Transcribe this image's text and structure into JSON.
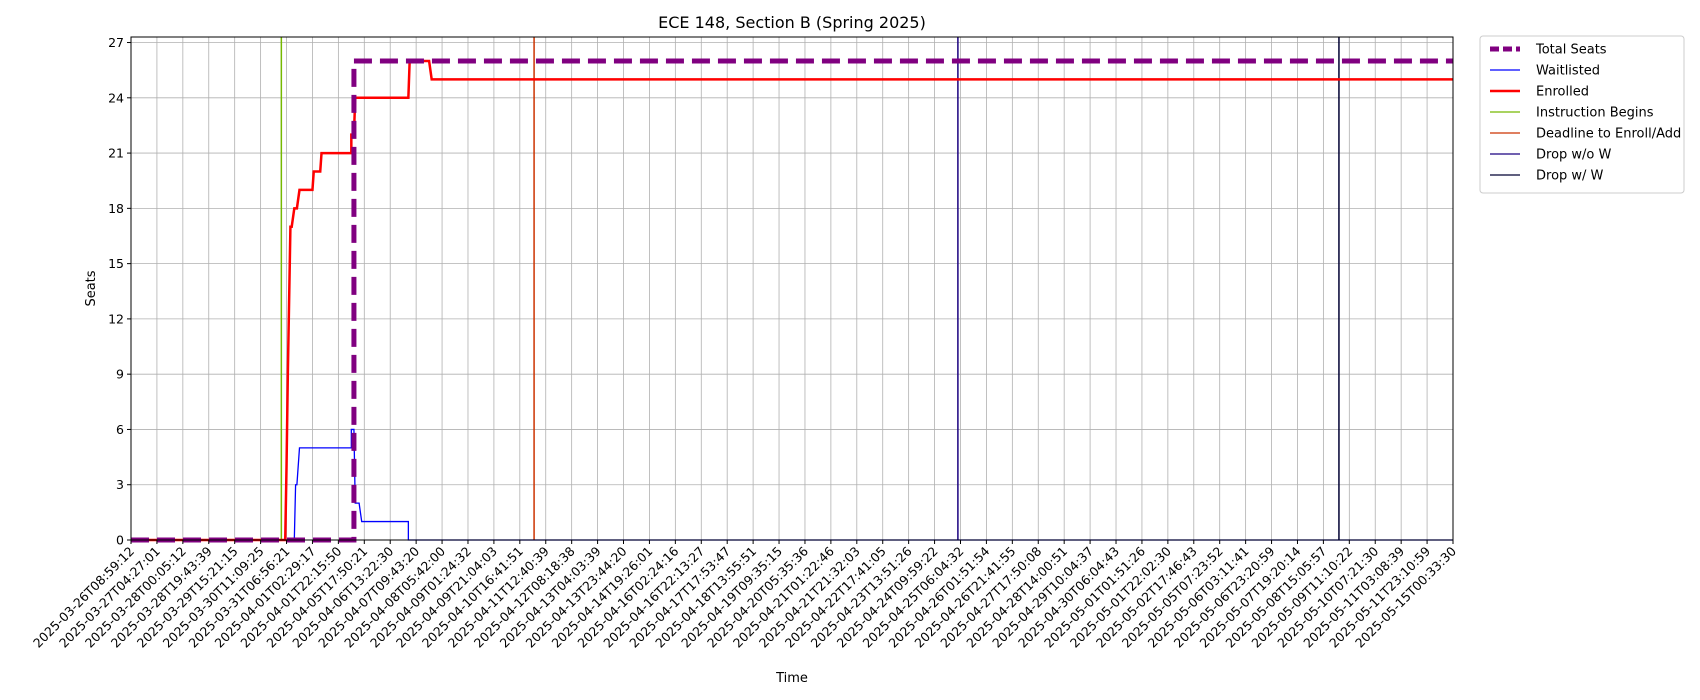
{
  "chart_data": {
    "type": "line",
    "title": "ECE 148, Section B (Spring 2025)",
    "xlabel": "Time",
    "ylabel": "Seats",
    "ylim": [
      0,
      27.3
    ],
    "yticks": [
      0,
      3,
      6,
      9,
      12,
      15,
      18,
      21,
      24,
      27
    ],
    "grid": true,
    "legend_position": "outside top-right",
    "x_tick_labels": [
      "2025-03-26T08:59:12",
      "2025-03-27T04:27:01",
      "2025-03-28T00:05:12",
      "2025-03-28T19:43:39",
      "2025-03-29T15:21:15",
      "2025-03-30T11:09:25",
      "2025-03-31T06:56:21",
      "2025-04-01T02:29:17",
      "2025-04-01T22:15:50",
      "2025-04-05T17:50:21",
      "2025-04-06T13:22:30",
      "2025-04-07T09:43:20",
      "2025-04-08T05:42:00",
      "2025-04-09T01:24:32",
      "2025-04-09T21:04:03",
      "2025-04-10T16:41:51",
      "2025-04-11T12:40:39",
      "2025-04-12T08:18:38",
      "2025-04-13T04:03:39",
      "2025-04-13T23:44:20",
      "2025-04-14T19:26:01",
      "2025-04-16T02:24:16",
      "2025-04-16T22:13:27",
      "2025-04-17T17:53:47",
      "2025-04-18T13:55:51",
      "2025-04-19T09:35:15",
      "2025-04-20T05:35:36",
      "2025-04-21T01:22:46",
      "2025-04-21T21:32:03",
      "2025-04-22T17:41:05",
      "2025-04-23T13:51:26",
      "2025-04-24T09:59:22",
      "2025-04-25T06:04:32",
      "2025-04-26T01:51:54",
      "2025-04-26T21:41:55",
      "2025-04-27T17:50:08",
      "2025-04-28T14:00:51",
      "2025-04-29T10:04:37",
      "2025-04-30T06:04:43",
      "2025-05-01T01:51:26",
      "2025-05-01T22:02:30",
      "2025-05-02T17:46:43",
      "2025-05-05T07:23:52",
      "2025-05-06T03:11:41",
      "2025-05-06T23:20:59",
      "2025-05-07T19:20:14",
      "2025-05-08T15:05:57",
      "2025-05-09T11:10:22",
      "2025-05-10T07:21:30",
      "2025-05-11T03:08:39",
      "2025-05-11T23:10:59",
      "2025-05-15T00:33:30"
    ],
    "x_index_range": [
      0,
      51
    ],
    "series": [
      {
        "name": "Total Seats",
        "color": "#800080",
        "style": "dashed-thick",
        "x": [
          0,
          8.6,
          8.6,
          51
        ],
        "y": [
          0,
          0,
          26,
          26
        ]
      },
      {
        "name": "Waitlisted",
        "color": "#0000ff",
        "style": "solid-thin",
        "x": [
          0,
          6.3,
          6.35,
          6.4,
          6.5,
          8.5,
          8.5,
          8.6,
          8.65,
          8.65,
          8.8,
          8.8,
          8.9,
          8.9,
          9.0,
          9.0,
          10.7,
          10.7,
          51
        ],
        "y": [
          0,
          0,
          3,
          3,
          5,
          5,
          6,
          6,
          2,
          2,
          2,
          2,
          1,
          1,
          1,
          1,
          1,
          0,
          0
        ]
      },
      {
        "name": "Enrolled",
        "color": "#ff0000",
        "style": "solid-thick",
        "x": [
          0,
          5.95,
          6.0,
          6.05,
          6.1,
          6.15,
          6.2,
          6.3,
          6.4,
          6.5,
          7.0,
          7.05,
          7.3,
          7.35,
          7.6,
          8.5,
          8.5,
          8.6,
          8.65,
          10.7,
          10.75,
          11.5,
          11.6,
          51
        ],
        "y": [
          0,
          0,
          4,
          9,
          13,
          17,
          17,
          18,
          18,
          19,
          19,
          20,
          20,
          21,
          21,
          21,
          22,
          22,
          24,
          24,
          26,
          26,
          25,
          25
        ]
      }
    ],
    "vertical_lines": [
      {
        "name": "Instruction Begins",
        "color": "#76b900",
        "x": 5.8
      },
      {
        "name": "Deadline to Enroll/Add",
        "color": "#cc3300",
        "x": 15.55
      },
      {
        "name": "Drop w/o W",
        "color": "#1a0080",
        "x": 31.9
      },
      {
        "name": "Drop w/ W",
        "color": "#000033",
        "x": 46.6
      }
    ],
    "legend": [
      {
        "label": "Total Seats",
        "color": "#800080",
        "style": "dashed-thick"
      },
      {
        "label": "Waitlisted",
        "color": "#0000ff",
        "style": "solid-thin"
      },
      {
        "label": "Enrolled",
        "color": "#ff0000",
        "style": "solid-thick"
      },
      {
        "label": "Instruction Begins",
        "color": "#76b900",
        "style": "solid-thin"
      },
      {
        "label": "Deadline to Enroll/Add",
        "color": "#cc3300",
        "style": "solid-thin"
      },
      {
        "label": "Drop w/o W",
        "color": "#1a0080",
        "style": "solid-thin"
      },
      {
        "label": "Drop w/ W",
        "color": "#000033",
        "style": "solid-thin"
      }
    ]
  }
}
